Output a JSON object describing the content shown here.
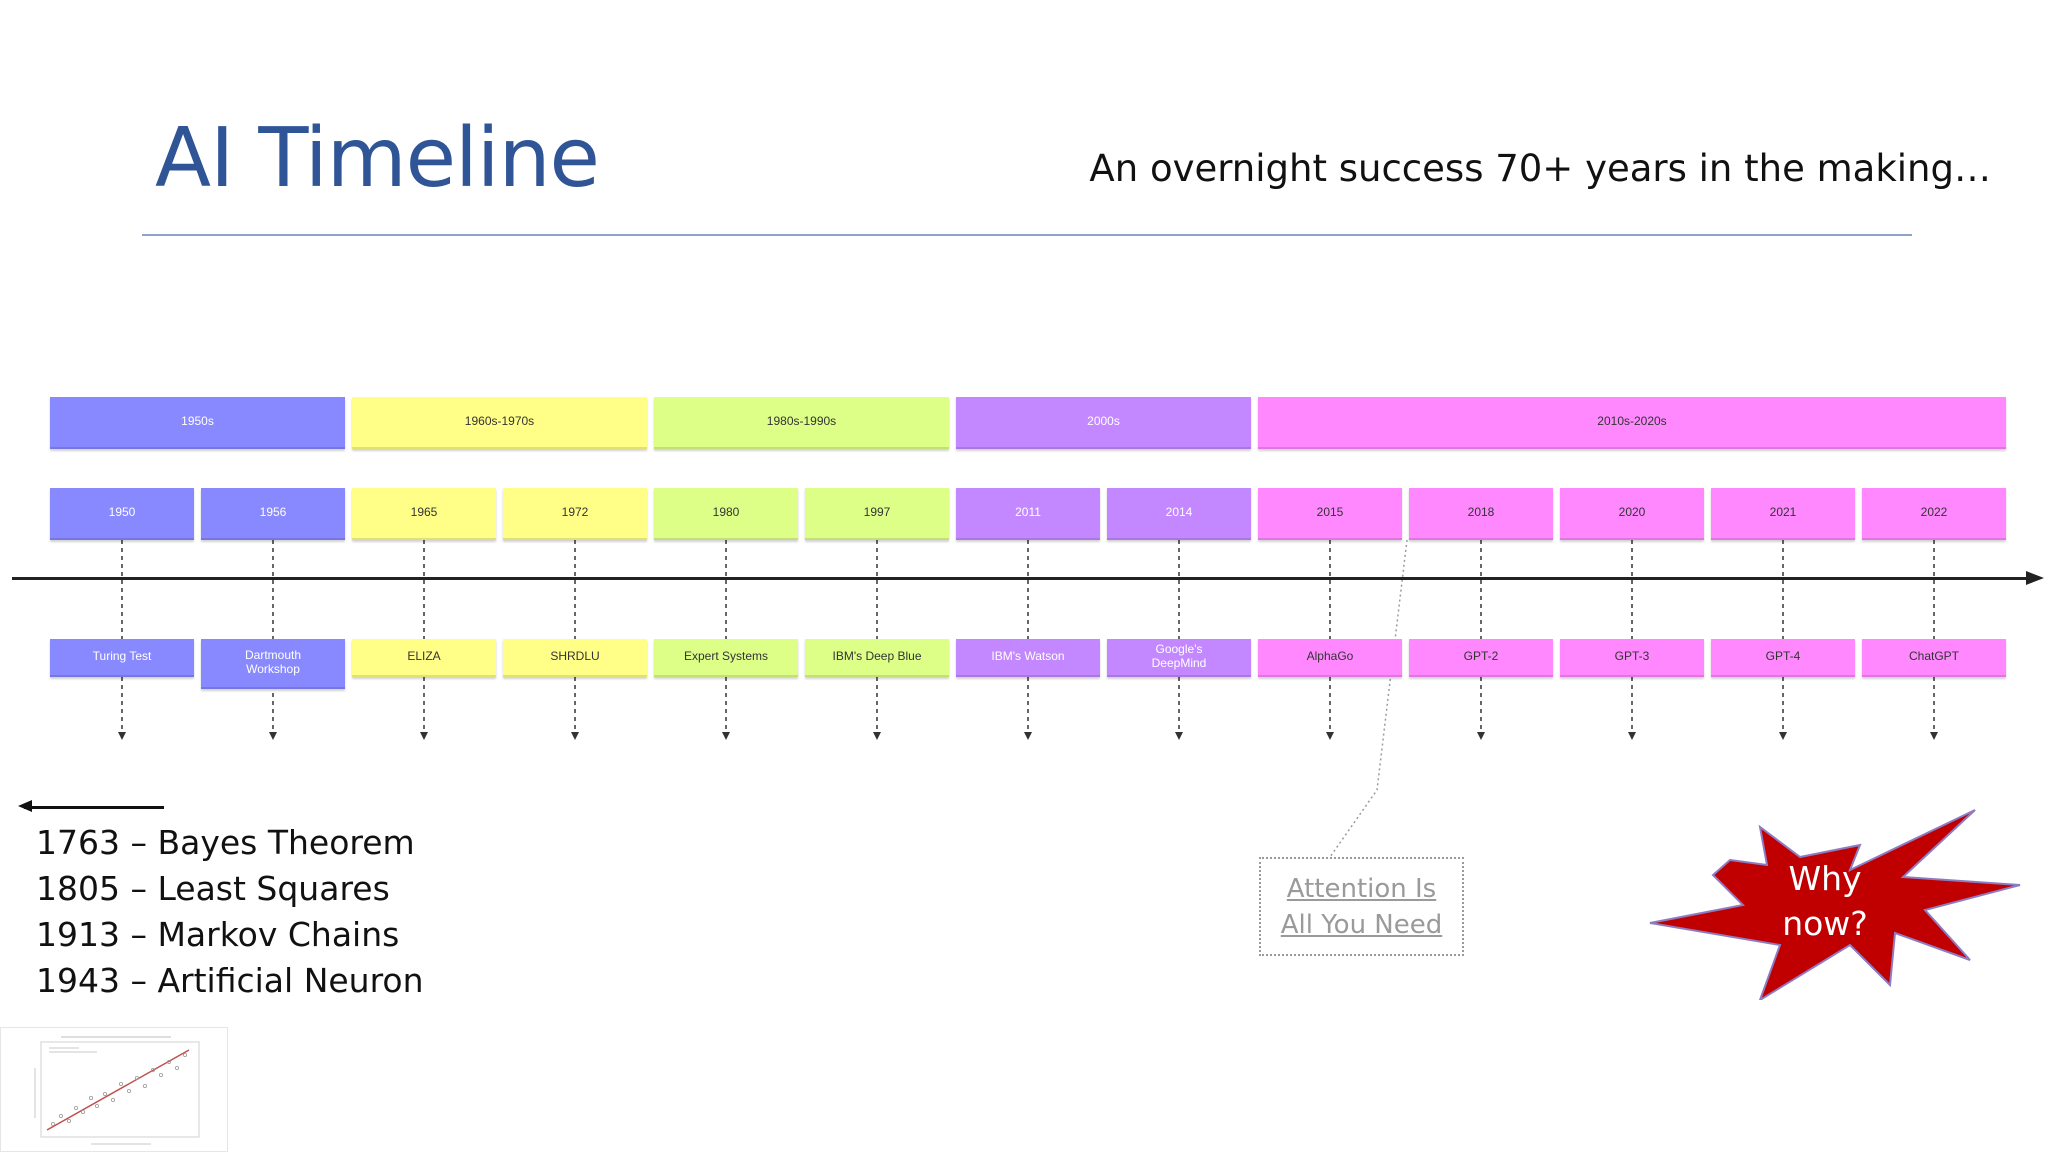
{
  "slide": {
    "title": "AI Timeline",
    "subtitle": "An overnight success 70+ years in the making…"
  },
  "colors": {
    "title": "#2f5597",
    "rule": "#8ea3c7",
    "burst_fill": "#c00000",
    "burst_stroke": "#8e7cc3",
    "attention_text": "#9a9a9a"
  },
  "eras": [
    {
      "label": "1950s",
      "color": "#8888ff",
      "light": true
    },
    {
      "label": "1960s-1970s",
      "color": "#ffff88",
      "light": false
    },
    {
      "label": "1980s-1990s",
      "color": "#ddff88",
      "light": false
    },
    {
      "label": "2000s",
      "color": "#c388ff",
      "light": true
    },
    {
      "label": "2010s-2020s",
      "color": "#ff88ff",
      "light": false
    }
  ],
  "events": [
    {
      "year": "1950",
      "name": "Turing Test",
      "era": 0
    },
    {
      "year": "1956",
      "name": "Dartmouth Workshop",
      "era": 0
    },
    {
      "year": "1965",
      "name": "ELIZA",
      "era": 1
    },
    {
      "year": "1972",
      "name": "SHRDLU",
      "era": 1
    },
    {
      "year": "1980",
      "name": "Expert Systems",
      "era": 2
    },
    {
      "year": "1997",
      "name": "IBM's Deep Blue",
      "era": 2
    },
    {
      "year": "2011",
      "name": "IBM's Watson",
      "era": 3
    },
    {
      "year": "2014",
      "name": "Google's DeepMind",
      "era": 3
    },
    {
      "year": "2015",
      "name": "AlphaGo",
      "era": 4
    },
    {
      "year": "2018",
      "name": "GPT-2",
      "era": 4
    },
    {
      "year": "2020",
      "name": "GPT-3",
      "era": 4
    },
    {
      "year": "2021",
      "name": "GPT-4",
      "era": 4
    },
    {
      "year": "2022",
      "name": "ChatGPT",
      "era": 4
    }
  ],
  "history": [
    "1763 – Bayes Theorem",
    "1805 – Least Squares",
    "1913 – Markov Chains",
    "1943 – Artificial Neuron"
  ],
  "callout": {
    "line1": "Attention Is",
    "line2": "All You Need"
  },
  "why_now": {
    "line1": "Why",
    "line2": "now?"
  },
  "thumbnail": {
    "icon": "scatter-plot-thumbnail"
  }
}
